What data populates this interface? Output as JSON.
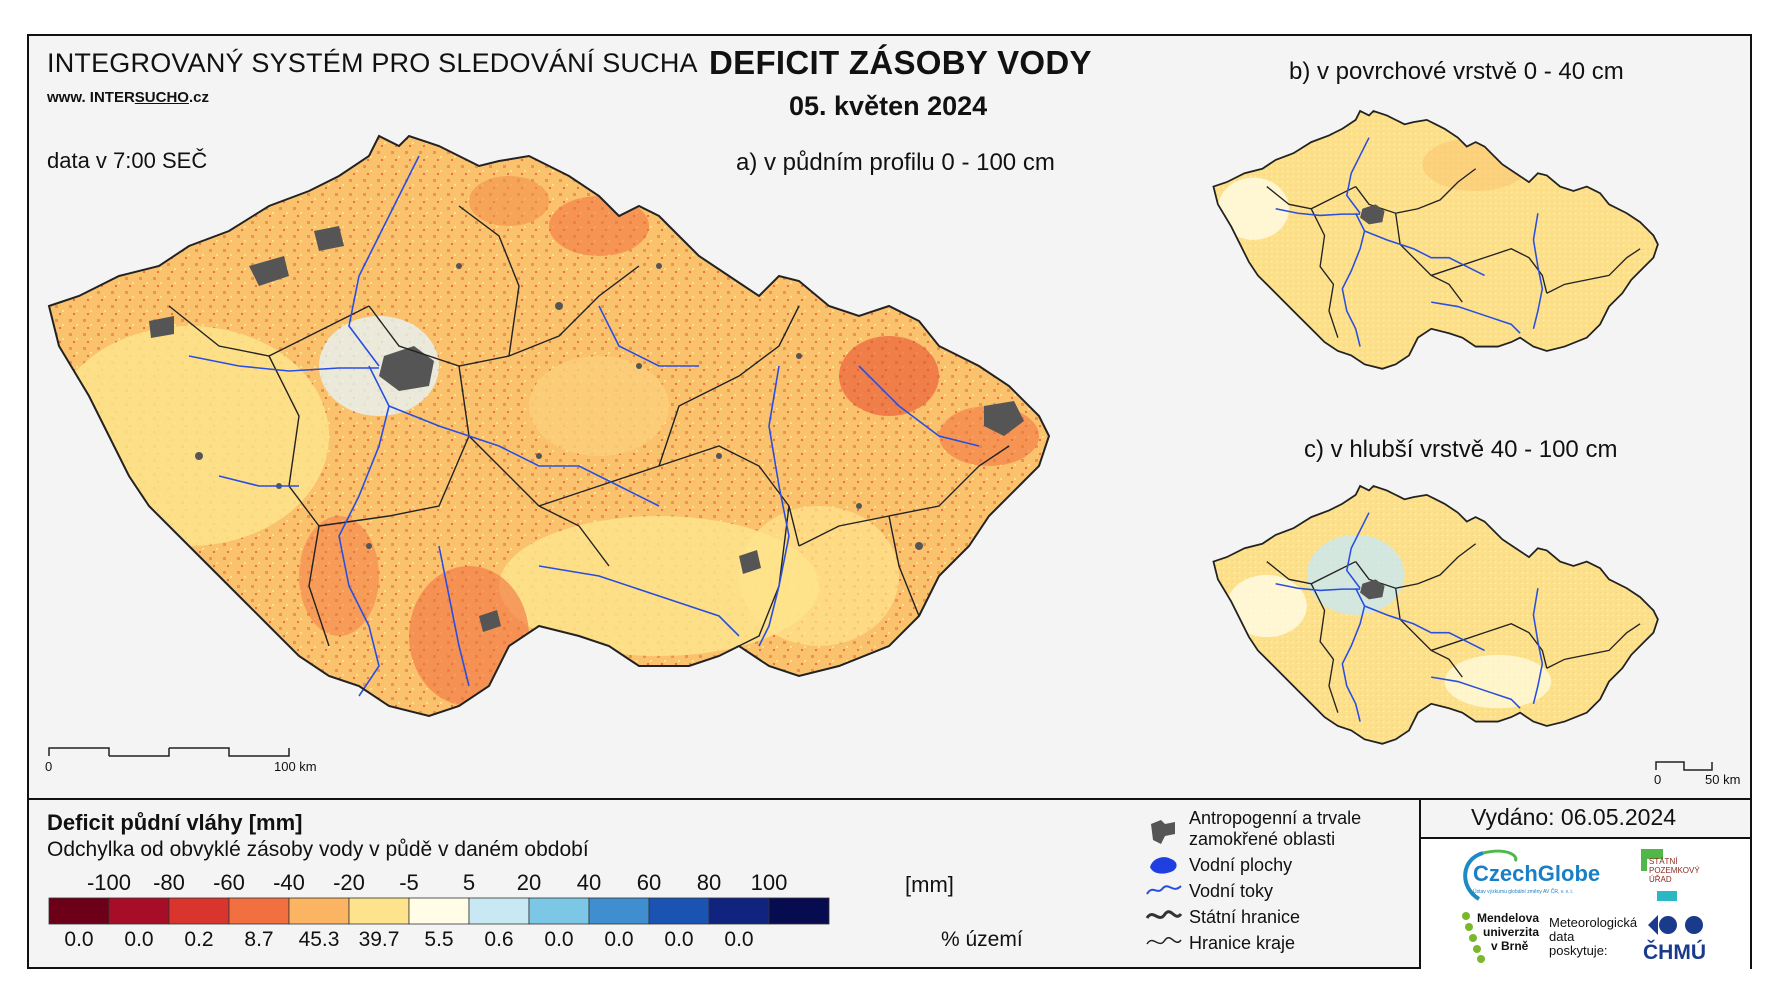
{
  "header": {
    "system_title": "INTEGROVANÝ SYSTÉM PRO SLEDOVÁNÍ SUCHA",
    "website_prefix": "www. INTER",
    "website_accent": "SUCHO",
    "website_suffix": ".cz",
    "data_time": "data v 7:00 SEČ",
    "main_title": "DEFICIT ZÁSOBY VODY",
    "date": "05. květen 2024"
  },
  "maps": {
    "a_label": "a) v půdním profilu 0 - 100 cm",
    "b_label": "b) v povrchové vrstvě 0 - 40 cm",
    "c_label": "c) v hlubší vrstvě 40 - 100 cm",
    "scale_main_zero": "0",
    "scale_main_end": "100 km",
    "scale_small_zero": "0",
    "scale_small_end": "50 km"
  },
  "legend": {
    "title": "Deficit půdní vláhy  [mm]",
    "subtitle": "Odchylka od obvyklé zásoby vody v půdě v daném období",
    "unit": "[mm]",
    "percent_label": "% území",
    "class_limits": [
      "-100",
      "-80",
      "-60",
      "-40",
      "-20",
      "-5",
      "5",
      "20",
      "40",
      "60",
      "80",
      "100"
    ],
    "classes": [
      {
        "color": "#6b0018",
        "percent": "0.0"
      },
      {
        "color": "#a70d26",
        "percent": "0.0"
      },
      {
        "color": "#d9352d",
        "percent": "0.2"
      },
      {
        "color": "#f26f3f",
        "percent": "8.7"
      },
      {
        "color": "#fbb462",
        "percent": "45.3"
      },
      {
        "color": "#fde48c",
        "percent": "39.7"
      },
      {
        "color": "#fffde6",
        "percent": "5.5"
      },
      {
        "color": "#c8e8f3",
        "percent": "0.6"
      },
      {
        "color": "#7cc6e6",
        "percent": "0.0"
      },
      {
        "color": "#3f8fd0",
        "percent": "0.0"
      },
      {
        "color": "#1b53b2",
        "percent": "0.0"
      },
      {
        "color": "#10237f",
        "percent": "0.0"
      },
      {
        "color": "#070b4f",
        "percent": ""
      }
    ]
  },
  "symbols": {
    "anthropogenic": "Antropogenní a trvale",
    "anthropogenic_2": "zamokřené oblasti",
    "water_bodies": "Vodní plochy",
    "water_streams": "Vodní toky",
    "state_border": "Státní hranice",
    "region_border": "Hranice kraje"
  },
  "issued": "Vydáno: 06.05.2024",
  "logos": {
    "czechglobe": "CzechGlobe",
    "czechglobe_sub": "Ústav výzkumu globální změny AV ČR, v. v. i.",
    "spu": "STÁTNÍ POZEMKOVÝ ÚŘAD",
    "mendel_1": "Mendelova",
    "mendel_2": "univerzita",
    "mendel_3": "v Brně",
    "chmi_1": "Meteorologická",
    "chmi_2": "data",
    "chmi_3": "poskytuje:",
    "chmu": "ČHMÚ"
  },
  "colors": {
    "water": "#2a4fe0",
    "urban": "#555555",
    "border": "#222222"
  }
}
